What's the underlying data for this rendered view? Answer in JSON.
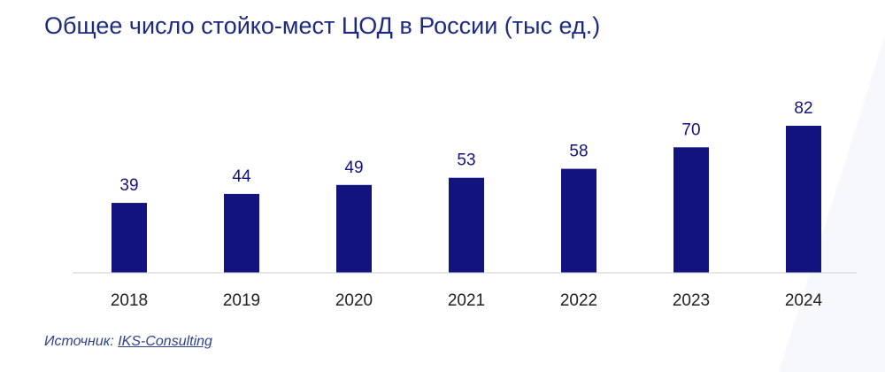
{
  "title": "Общее число стойко-мест ЦОД в России (тыс ед.)",
  "source": {
    "label": "Источник:",
    "link_text": "IKS-Consulting"
  },
  "colors": {
    "bar": "#13137f",
    "title": "#1c2a80",
    "value_label": "#13137f",
    "axis": "#cfcfcf",
    "tick_label": "#222222",
    "source": "#2f3f8f"
  },
  "chart_data": {
    "type": "bar",
    "title": "Общее число стойко-мест ЦОД в России (тыс ед.)",
    "xlabel": "",
    "ylabel": "",
    "categories": [
      "2018",
      "2019",
      "2020",
      "2021",
      "2022",
      "2023",
      "2024"
    ],
    "values": [
      39,
      44,
      49,
      53,
      58,
      70,
      82
    ],
    "ylim": [
      0,
      82
    ],
    "grid": false,
    "legend": "none",
    "data_labels": true
  }
}
